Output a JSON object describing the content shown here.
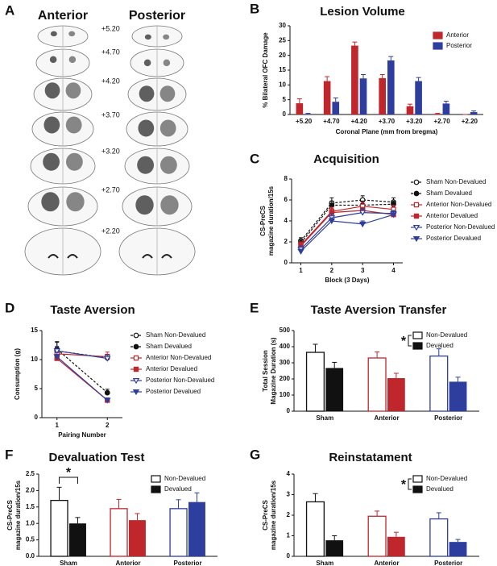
{
  "panel_a": {
    "letter": "A",
    "titles": [
      "Anterior",
      "Posterior"
    ],
    "title_colors": [
      "#b5212a",
      "#2b3a97"
    ],
    "levels": [
      "+5.20",
      "+4.70",
      "+4.20",
      "+3.70",
      "+3.20",
      "+2.70",
      "+2.20"
    ]
  },
  "chart_data": [
    {
      "type": "bar",
      "letter": "B",
      "title": "Lesion Volume",
      "ylabel": [
        "% Bilateral OFC Damage"
      ],
      "xlabel": "Coronal Plane (mm from bregma)",
      "legend": "upper right",
      "categories": [
        "+5.20",
        "+4.70",
        "+4.20",
        "+3.70",
        "+3.20",
        "+2.70",
        "+2.20"
      ],
      "series": [
        {
          "name": "Anterior",
          "color": "#c0272d",
          "filled": true,
          "values": [
            3.8,
            11.3,
            23.3,
            12.3,
            2.8,
            0.2,
            0
          ],
          "errors": [
            1.5,
            1.5,
            1.2,
            1.2,
            0.7,
            0.2,
            0
          ]
        },
        {
          "name": "Posterior",
          "color": "#2e3e9e",
          "filled": true,
          "values": [
            0.2,
            4.3,
            12.2,
            18.3,
            11.3,
            3.7,
            0.8
          ],
          "errors": [
            0.2,
            1.3,
            1.3,
            1.3,
            1.2,
            0.8,
            0.4
          ]
        }
      ],
      "ylim": [
        0,
        30
      ],
      "yticks": [
        0,
        5,
        10,
        15,
        20,
        25,
        30
      ]
    },
    {
      "type": "line",
      "letter": "C",
      "title": "Acquisition",
      "ylabel": [
        "CS-PreCS",
        "magazine duration/15s"
      ],
      "xlabel": "Block (3 Days)",
      "legend": "right",
      "x": [
        1,
        2,
        3,
        4
      ],
      "xlim": [
        0.7,
        4.3
      ],
      "xticks": [
        1,
        2,
        3,
        4
      ],
      "ylim": [
        0,
        8
      ],
      "yticks": [
        0,
        2,
        4,
        6,
        8
      ],
      "series": [
        {
          "name": "Sham Non-Devalued",
          "color": "#111111",
          "dashed": true,
          "marker": "circle",
          "filled": false,
          "values": [
            2.1,
            5.7,
            6.0,
            5.8
          ],
          "errors": [
            0.3,
            0.5,
            0.4,
            0.4
          ]
        },
        {
          "name": "Sham Devalued",
          "color": "#111111",
          "dashed": true,
          "marker": "circle",
          "filled": true,
          "values": [
            1.9,
            5.5,
            5.5,
            5.6
          ],
          "errors": [
            0.3,
            0.4,
            0.4,
            0.3
          ]
        },
        {
          "name": "Anterior Non-Devalued",
          "color": "#c0272d",
          "dashed": false,
          "marker": "square",
          "filled": false,
          "values": [
            1.7,
            4.9,
            5.4,
            5.1
          ],
          "errors": [
            0.3,
            0.4,
            0.4,
            0.4
          ]
        },
        {
          "name": "Anterior Devalued",
          "color": "#c0272d",
          "dashed": false,
          "marker": "square",
          "filled": true,
          "values": [
            1.6,
            4.8,
            5.0,
            4.6
          ],
          "errors": [
            0.3,
            0.4,
            0.3,
            0.3
          ]
        },
        {
          "name": "Posterior Non-Devalued",
          "color": "#2e3e9e",
          "dashed": false,
          "marker": "triangle",
          "filled": false,
          "values": [
            1.3,
            4.3,
            4.8,
            4.7
          ],
          "errors": [
            0.3,
            0.4,
            0.4,
            0.3
          ]
        },
        {
          "name": "Posterior Devalued",
          "color": "#2e3e9e",
          "dashed": false,
          "marker": "triangle",
          "filled": true,
          "values": [
            1.1,
            4.0,
            3.7,
            4.6
          ],
          "errors": [
            0.2,
            0.3,
            0.3,
            0.3
          ]
        }
      ]
    },
    {
      "type": "line",
      "letter": "D",
      "title": "Taste Aversion",
      "ylabel": [
        "Consumption (g)"
      ],
      "xlabel": "Pairing Number",
      "legend": "right",
      "x": [
        1,
        2
      ],
      "xlim": [
        0.7,
        2.3
      ],
      "xticks": [
        1,
        2
      ],
      "ylim": [
        0,
        15
      ],
      "yticks": [
        0,
        5,
        10,
        15
      ],
      "series": [
        {
          "name": "Sham Non-Devalued",
          "color": "#111111",
          "dashed": true,
          "marker": "circle",
          "filled": false,
          "values": [
            11.5,
            10.3
          ],
          "errors": [
            1.5,
            0.6
          ]
        },
        {
          "name": "Sham Devalued",
          "color": "#111111",
          "dashed": true,
          "marker": "circle",
          "filled": true,
          "values": [
            11.8,
            4.3
          ],
          "errors": [
            1.3,
            0.6
          ]
        },
        {
          "name": "Anterior Non-Devalued",
          "color": "#c0272d",
          "dashed": false,
          "marker": "square",
          "filled": false,
          "values": [
            11.0,
            10.5
          ],
          "errors": [
            0.8,
            0.8
          ]
        },
        {
          "name": "Anterior Devalued",
          "color": "#c0272d",
          "dashed": false,
          "marker": "square",
          "filled": true,
          "values": [
            10.2,
            3.0
          ],
          "errors": [
            0.7,
            0.4
          ]
        },
        {
          "name": "Posterior Non-Devalued",
          "color": "#2e3e9e",
          "dashed": false,
          "marker": "triangle",
          "filled": false,
          "values": [
            11.5,
            10.2
          ],
          "errors": [
            0.8,
            0.6
          ]
        },
        {
          "name": "Posterior Devalued",
          "color": "#2e3e9e",
          "dashed": false,
          "marker": "triangle",
          "filled": true,
          "values": [
            10.5,
            3.0
          ],
          "errors": [
            0.7,
            0.4
          ]
        }
      ]
    },
    {
      "type": "bar",
      "letter": "E",
      "title": "Taste  Aversion Transfer",
      "ylabel": [
        "Total Session",
        "Magazine Duration (s)"
      ],
      "legend": "upper right",
      "significance": "*",
      "categories": [
        "Sham",
        "Anterior",
        "Posterior"
      ],
      "category_colors": [
        "#111111",
        "#c0272d",
        "#2e3e9e"
      ],
      "series": [
        {
          "name": "Non-Devalued",
          "color": "#111111",
          "filled": false,
          "values": [
            365,
            330,
            342
          ],
          "errors": [
            50,
            38,
            45
          ]
        },
        {
          "name": "Devalued",
          "color": "#111111",
          "filled": true,
          "values": [
            268,
            205,
            183
          ],
          "errors": [
            35,
            30,
            28
          ]
        }
      ],
      "ylim": [
        0,
        500
      ],
      "yticks": [
        0,
        100,
        200,
        300,
        400,
        500
      ]
    },
    {
      "type": "bar",
      "letter": "F",
      "title": "Devaluation Test",
      "ylabel": [
        "CS-PreCS",
        "magazine duration/15s"
      ],
      "legend": "upper right",
      "significance": "*",
      "categories": [
        "Sham",
        "Anterior",
        "Posterior"
      ],
      "category_colors": [
        "#111111",
        "#c0272d",
        "#2e3e9e"
      ],
      "series": [
        {
          "name": "Non-Devalued",
          "color": "#111111",
          "filled": false,
          "values": [
            1.7,
            1.45,
            1.45
          ],
          "errors": [
            0.4,
            0.28,
            0.27
          ]
        },
        {
          "name": "Devalued",
          "color": "#111111",
          "filled": true,
          "values": [
            1.0,
            1.1,
            1.65
          ],
          "errors": [
            0.18,
            0.2,
            0.28
          ]
        }
      ],
      "ylim": [
        0,
        2.5
      ],
      "yticks": [
        {
          "value": 0,
          "label": "0.0"
        },
        0.5,
        {
          "value": 1,
          "label": "1.0"
        },
        1.5,
        {
          "value": 2,
          "label": "2.0"
        },
        2.5
      ]
    },
    {
      "type": "bar",
      "letter": "G",
      "title": "Reinstatament",
      "ylabel": [
        "CS-PreCS",
        "magazine duration/15s"
      ],
      "legend": "upper right",
      "significance": "*",
      "categories": [
        "Sham",
        "Anterior",
        "Posterior"
      ],
      "category_colors": [
        "#111111",
        "#c0272d",
        "#2e3e9e"
      ],
      "series": [
        {
          "name": "Non-Devalued",
          "color": "#111111",
          "filled": false,
          "values": [
            2.65,
            1.95,
            1.82
          ],
          "errors": [
            0.4,
            0.25,
            0.3
          ]
        },
        {
          "name": "Devalued",
          "color": "#111111",
          "filled": true,
          "values": [
            0.78,
            0.95,
            0.7
          ],
          "errors": [
            0.22,
            0.22,
            0.12
          ]
        }
      ],
      "ylim": [
        0,
        4
      ],
      "yticks": [
        0,
        1,
        2,
        3,
        4
      ]
    }
  ]
}
